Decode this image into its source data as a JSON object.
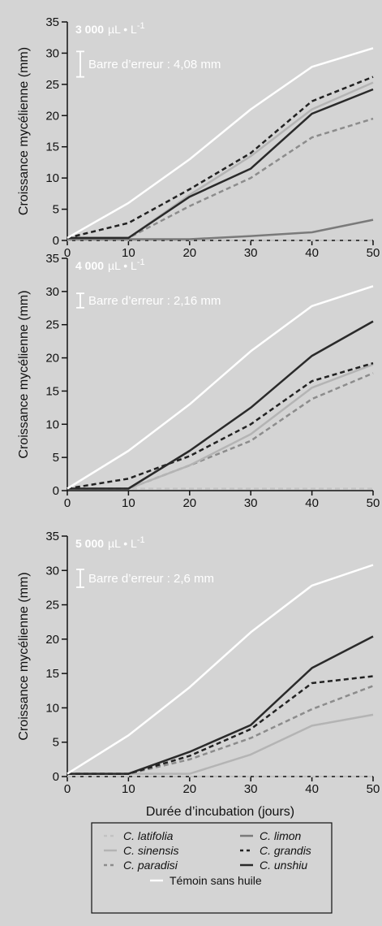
{
  "colors": {
    "panel_bg": "#d4d4d4",
    "legend_bg": "#d4d4d4",
    "axis": "#111111",
    "C. latifolia": "#c2c2c2",
    "C. sinensis": "#b4b4b4",
    "C. paradisi": "#8c8c8c",
    "C. limon": "#7a7a7a",
    "C. grandis": "#222222",
    "C. unshiu": "#2a2a2a",
    "Témoin sans huile": "#ffffff"
  },
  "chart_data": [
    {
      "type": "line",
      "concentration_value": "3 000",
      "concentration_unit": "µL • L",
      "concentration_exp": "-1",
      "error_bar_label": "Barre d’erreur : 4,08 mm",
      "error_bar_value": 4.08,
      "ylabel": "Croissance mycélienne (mm)",
      "xlabel": "",
      "xlim": [
        0,
        50
      ],
      "ylim": [
        0,
        35
      ],
      "xticks": [
        "0",
        "10",
        "20",
        "30",
        "40",
        "50"
      ],
      "yticks": [
        "0",
        "5",
        "10",
        "15",
        "20",
        "25",
        "30",
        "35"
      ],
      "x": [
        0,
        10,
        20,
        30,
        40,
        50
      ],
      "series": [
        {
          "name": "C. latifolia",
          "style": "dashed",
          "values": [
            0,
            0,
            0,
            0,
            0,
            0
          ]
        },
        {
          "name": "C. limon",
          "style": "solid",
          "values": [
            0.2,
            0.2,
            0.2,
            0.7,
            1.3,
            3.3
          ]
        },
        {
          "name": "C. paradisi",
          "style": "dashed",
          "values": [
            0.4,
            0.4,
            5.5,
            10,
            16.5,
            19.5
          ]
        },
        {
          "name": "C. sinensis",
          "style": "solid",
          "values": [
            0.4,
            0.4,
            7.3,
            13.5,
            21,
            25.3
          ]
        },
        {
          "name": "C. grandis",
          "style": "dashed",
          "values": [
            0.4,
            2.8,
            8.2,
            14,
            22.3,
            26.2
          ]
        },
        {
          "name": "C. unshiu",
          "style": "solid",
          "values": [
            0.4,
            0.4,
            7,
            11.5,
            20.3,
            24.2
          ]
        },
        {
          "name": "Témoin sans huile",
          "style": "solid",
          "values": [
            0.4,
            6,
            13,
            21,
            27.8,
            30.8
          ]
        }
      ]
    },
    {
      "type": "line",
      "concentration_value": "4 000",
      "concentration_unit": "µL • L",
      "concentration_exp": "-1",
      "error_bar_label": "Barre d’erreur : 2,16 mm",
      "error_bar_value": 2.16,
      "ylabel": "Croissance mycélienne (mm)",
      "xlabel": "",
      "xlim": [
        0,
        50
      ],
      "ylim": [
        0,
        35
      ],
      "xticks": [
        "0",
        "10",
        "20",
        "30",
        "40",
        "50"
      ],
      "yticks": [
        "0",
        "5",
        "10",
        "15",
        "20",
        "25",
        "30",
        "35"
      ],
      "x": [
        0,
        10,
        20,
        30,
        40,
        50
      ],
      "series": [
        {
          "name": "C. latifolia",
          "style": "dashed",
          "values": [
            0.3,
            0.3,
            0.3,
            0.3,
            0.3,
            0.3
          ]
        },
        {
          "name": "C. paradisi",
          "style": "dashed",
          "values": [
            0.3,
            0.3,
            3.8,
            7.5,
            13.8,
            17.7
          ]
        },
        {
          "name": "C. sinensis",
          "style": "solid",
          "values": [
            0.3,
            0.3,
            3.8,
            8.5,
            15.5,
            19
          ]
        },
        {
          "name": "C. grandis",
          "style": "dashed",
          "values": [
            0.3,
            1.8,
            5.2,
            10,
            16.5,
            19.2
          ]
        },
        {
          "name": "C. unshiu",
          "style": "solid",
          "values": [
            0.3,
            0.3,
            6,
            12.5,
            20.3,
            25.5
          ]
        },
        {
          "name": "Témoin sans huile",
          "style": "solid",
          "values": [
            0.3,
            6,
            13,
            21,
            27.8,
            30.8
          ]
        }
      ]
    },
    {
      "type": "line",
      "concentration_value": "5 000",
      "concentration_unit": "µL • L",
      "concentration_exp": "-1",
      "error_bar_label": "Barre d’erreur : 2,6 mm",
      "error_bar_value": 2.6,
      "ylabel": "Croissance mycélienne (mm)",
      "xlabel": "Durée d’incubation (jours)",
      "xlim": [
        0,
        50
      ],
      "ylim": [
        0,
        35
      ],
      "xticks": [
        "0",
        "10",
        "20",
        "30",
        "40",
        "50"
      ],
      "yticks": [
        "0",
        "5",
        "10",
        "15",
        "20",
        "25",
        "30",
        "35"
      ],
      "x": [
        0,
        10,
        20,
        30,
        40,
        50
      ],
      "series": [
        {
          "name": "C. latifolia",
          "style": "dashed",
          "values": [
            0,
            0,
            0,
            0,
            0,
            0
          ]
        },
        {
          "name": "C. sinensis",
          "style": "solid",
          "values": [
            0.4,
            0.4,
            0.4,
            3.2,
            7.4,
            9
          ]
        },
        {
          "name": "C. paradisi",
          "style": "dashed",
          "values": [
            0.4,
            0.4,
            2.5,
            5.6,
            9.8,
            13.2
          ]
        },
        {
          "name": "C. grandis",
          "style": "dashed",
          "values": [
            0.4,
            0.4,
            3,
            6.9,
            13.6,
            14.6
          ]
        },
        {
          "name": "C. unshiu",
          "style": "solid",
          "values": [
            0.4,
            0.4,
            3.6,
            7.5,
            15.8,
            20.4
          ]
        },
        {
          "name": "Témoin sans huile",
          "style": "solid",
          "values": [
            0.4,
            6,
            13,
            21,
            27.8,
            30.8
          ]
        }
      ]
    }
  ],
  "legend": {
    "placement": "bottom",
    "items": [
      {
        "name": "C. latifolia",
        "style": "dashed",
        "italic": true
      },
      {
        "name": "C. limon",
        "style": "solid",
        "italic": true
      },
      {
        "name": "C. sinensis",
        "style": "solid",
        "italic": true
      },
      {
        "name": "C. grandis",
        "style": "dashed",
        "italic": true
      },
      {
        "name": "C. paradisi",
        "style": "dashed",
        "italic": true
      },
      {
        "name": "C. unshiu",
        "style": "solid",
        "italic": true
      },
      {
        "name": "Témoin sans huile",
        "style": "solid",
        "italic": false
      }
    ]
  }
}
